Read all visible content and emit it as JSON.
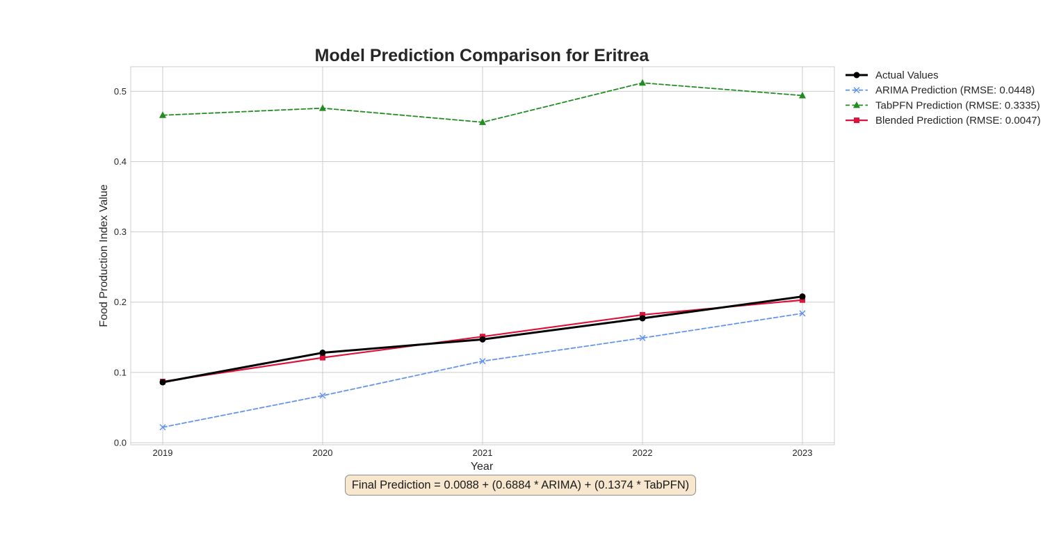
{
  "chart_data": {
    "type": "line",
    "title": "Model Prediction Comparison for Eritrea",
    "xlabel": "Year",
    "ylabel": "Food Production Index Value",
    "x": [
      2019,
      2020,
      2021,
      2022,
      2023
    ],
    "x_tick_labels": [
      "2019",
      "2020",
      "2021",
      "2022",
      "2023"
    ],
    "xlim": [
      2018.8,
      2023.2
    ],
    "ylim": [
      -0.003,
      0.535
    ],
    "y_ticks": [
      0.0,
      0.1,
      0.2,
      0.3,
      0.4,
      0.5
    ],
    "y_tick_labels": [
      "0.0",
      "0.1",
      "0.2",
      "0.3",
      "0.4",
      "0.5"
    ],
    "grid": true,
    "legend_position": "outside-right",
    "series": [
      {
        "name": "Actual Values",
        "values": [
          0.086,
          0.128,
          0.147,
          0.177,
          0.208
        ],
        "color": "#000000",
        "marker": "circle",
        "dash": "solid",
        "width": 3
      },
      {
        "name": "ARIMA Prediction (RMSE: 0.0448)",
        "values": [
          0.022,
          0.067,
          0.116,
          0.149,
          0.184
        ],
        "color": "#6495ED",
        "marker": "x",
        "dash": "dashed",
        "width": 1.8
      },
      {
        "name": "TabPFN Prediction (RMSE: 0.3335)",
        "values": [
          0.466,
          0.476,
          0.456,
          0.512,
          0.494
        ],
        "color": "#228B22",
        "marker": "triangle",
        "dash": "dashed",
        "width": 1.8
      },
      {
        "name": "Blended Prediction (RMSE: 0.0047)",
        "values": [
          0.087,
          0.121,
          0.151,
          0.182,
          0.203
        ],
        "color": "#DC143C",
        "marker": "square",
        "dash": "solid",
        "width": 2.2
      }
    ],
    "annotation": "Final Prediction = 0.0088 + (0.6884 * ARIMA) + (0.1374 * TabPFN)"
  }
}
